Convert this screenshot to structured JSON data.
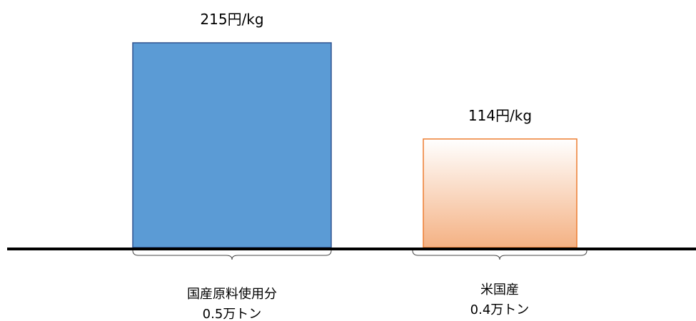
{
  "chart_data": {
    "type": "bar",
    "categories": [
      "国産原料使用分",
      "米国産"
    ],
    "category_sublabels": [
      "0.5万トン",
      "0.4万トン"
    ],
    "values": [
      215,
      114
    ],
    "value_labels": [
      "215円/kg",
      "114円/kg"
    ],
    "unit": "円/kg",
    "volumes_10k_tons": [
      0.5,
      0.4
    ],
    "title": "",
    "xlabel": "",
    "ylabel": "",
    "ylim": [
      0,
      215
    ],
    "grid": false,
    "legend": "none",
    "bar_styles": [
      {
        "fill": "#5B9BD5",
        "stroke": "#2F528F",
        "gradient": false
      },
      {
        "fill_top": "#FFFFFF",
        "fill_bottom": "#F4B183",
        "stroke": "#ED7D31",
        "gradient": true
      }
    ],
    "baseline_color": "#000000"
  }
}
